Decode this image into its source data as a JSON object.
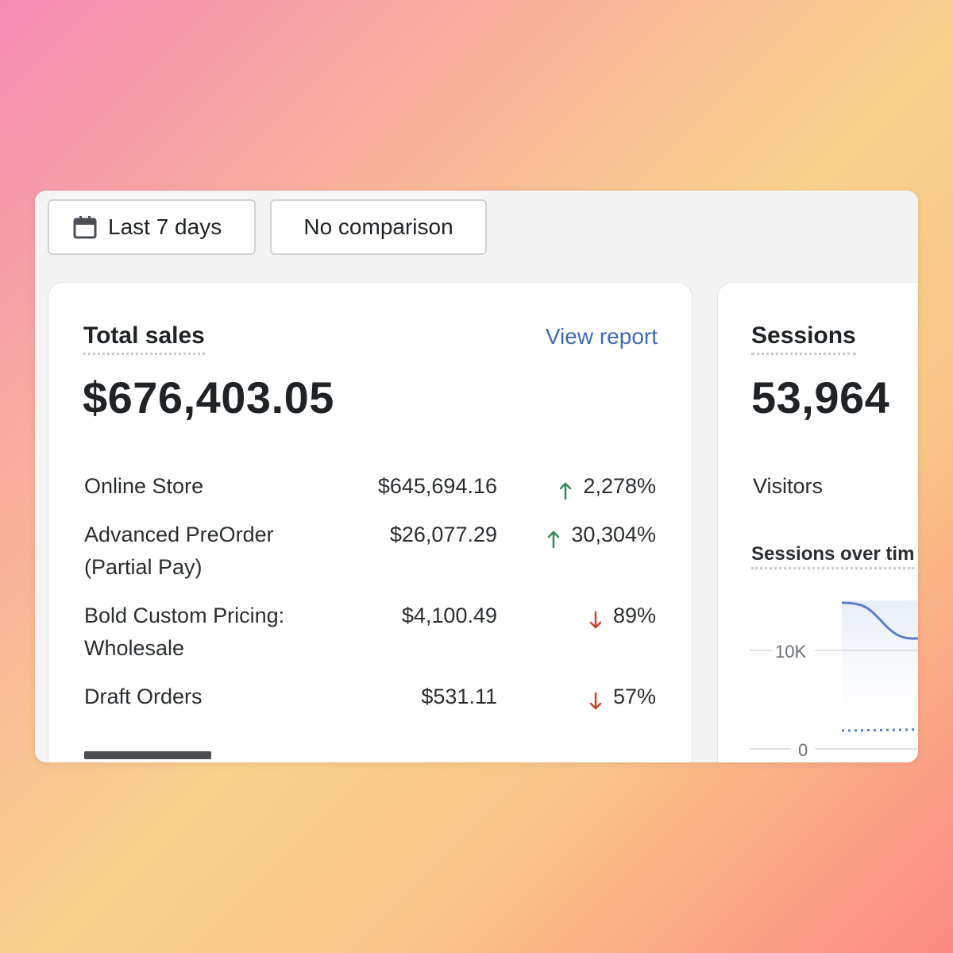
{
  "filters": {
    "date_range_label": "Last 7 days",
    "comparison_label": "No comparison"
  },
  "sales_card": {
    "title": "Total sales",
    "view_report_label": "View report",
    "total": "$676,403.05",
    "rows": [
      {
        "label_line1": "Online Store",
        "label_line2": "",
        "value": "$645,694.16",
        "change": "2,278%",
        "direction": "up"
      },
      {
        "label_line1": "Advanced PreOrder",
        "label_line2": "(Partial Pay)",
        "value": "$26,077.29",
        "change": "30,304%",
        "direction": "up"
      },
      {
        "label_line1": "Bold Custom Pricing:",
        "label_line2": "Wholesale",
        "value": "$4,100.49",
        "change": "89%",
        "direction": "down"
      },
      {
        "label_line1": "Draft Orders",
        "label_line2": "",
        "value": "$531.11",
        "change": "57%",
        "direction": "down"
      }
    ]
  },
  "sessions_card": {
    "title": "Sessions",
    "total": "53,964",
    "visitors_label": "Visitors",
    "chart_title": "Sessions over tim",
    "axis_labels": [
      "10K",
      "0"
    ]
  },
  "colors": {
    "up": "#2f8a55",
    "down": "#c9452f",
    "link": "#3e6cb6",
    "line": "#5b7fc4"
  }
}
